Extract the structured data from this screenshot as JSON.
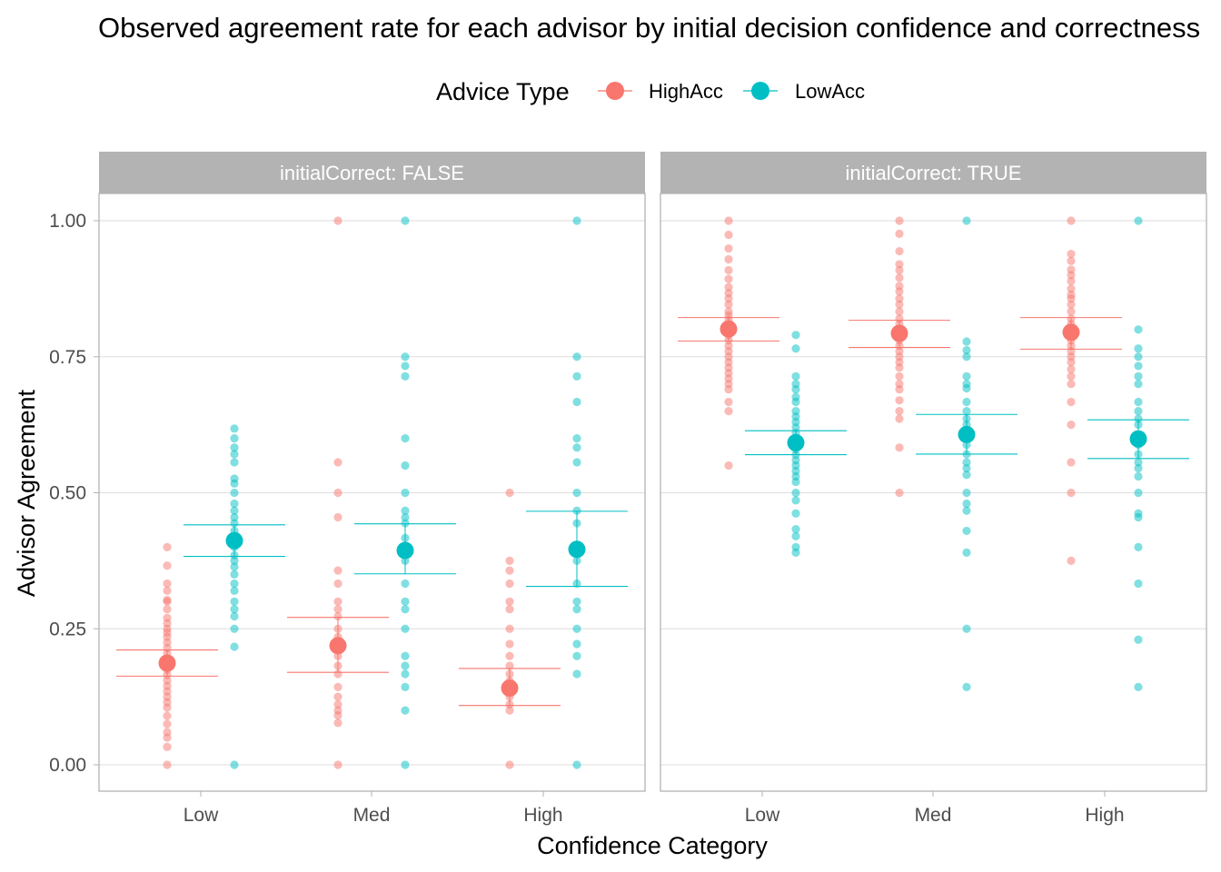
{
  "chart_data": {
    "type": "scatter",
    "title": "Observed agreement rate for each advisor by initial decision confidence and correctness",
    "xlabel": "Confidence Category",
    "ylabel": "Advisor Agreement",
    "ylim": [
      -0.05,
      1.1
    ],
    "yticks": [
      0.0,
      0.25,
      0.5,
      0.75,
      1.0
    ],
    "ytick_labels": [
      "0.00",
      "0.25",
      "0.50",
      "0.75",
      "1.00"
    ],
    "categories": [
      "Low",
      "Med",
      "High"
    ],
    "legend": {
      "title": "Advice Type",
      "position": "top"
    },
    "grid": true,
    "colors": {
      "HighAcc": "#F8766D",
      "LowAcc": "#00BFC4",
      "strip": "#B3B3B3",
      "grid": "#DEDEDE",
      "border": "#B3B3B3"
    },
    "panels": [
      {
        "label": "initialCorrect: FALSE",
        "series": [
          {
            "name": "HighAcc",
            "points": [
              [
                [
                  0.4,
                  0.366,
                  0.333,
                  0.32,
                  0.303,
                  0.3,
                  0.286,
                  0.27,
                  0.26,
                  0.25,
                  0.243,
                  0.235,
                  0.225,
                  0.215,
                  0.205,
                  0.195,
                  0.185,
                  0.175,
                  0.165,
                  0.155,
                  0.145,
                  0.135,
                  0.125,
                  0.115,
                  0.105,
                  0.09,
                  0.075,
                  0.06,
                  0.05,
                  0.033,
                  0.0
                ]
              ],
              [
                [
                  1.0,
                  0.556,
                  0.5,
                  0.455,
                  0.357,
                  0.333,
                  0.3,
                  0.286,
                  0.273,
                  0.25,
                  0.235,
                  0.225,
                  0.214,
                  0.2,
                  0.182,
                  0.167,
                  0.143,
                  0.125,
                  0.111,
                  0.1,
                  0.091,
                  0.077,
                  0.0
                ]
              ],
              [
                [
                  0.5,
                  0.375,
                  0.357,
                  0.333,
                  0.3,
                  0.286,
                  0.25,
                  0.222,
                  0.2,
                  0.182,
                  0.167,
                  0.154,
                  0.143,
                  0.125,
                  0.111,
                  0.1,
                  0.0
                ]
              ]
            ],
            "mean": [
              0.187,
              0.219,
              0.141
            ],
            "ci": [
              [
                0.163,
                0.211
              ],
              [
                0.17,
                0.271
              ],
              [
                0.109,
                0.177
              ]
            ]
          },
          {
            "name": "LowAcc",
            "points": [
              [
                [
                  0.618,
                  0.6,
                  0.583,
                  0.571,
                  0.556,
                  0.526,
                  0.517,
                  0.5,
                  0.48,
                  0.467,
                  0.455,
                  0.444,
                  0.43,
                  0.417,
                  0.4,
                  0.385,
                  0.375,
                  0.364,
                  0.35,
                  0.333,
                  0.32,
                  0.3,
                  0.286,
                  0.273,
                  0.25,
                  0.217,
                  0.0
                ]
              ],
              [
                [
                  1.0,
                  0.75,
                  0.733,
                  0.714,
                  0.6,
                  0.55,
                  0.5,
                  0.467,
                  0.455,
                  0.444,
                  0.417,
                  0.4,
                  0.375,
                  0.333,
                  0.3,
                  0.286,
                  0.25,
                  0.2,
                  0.182,
                  0.167,
                  0.143,
                  0.1,
                  0.0
                ]
              ],
              [
                [
                  1.0,
                  0.75,
                  0.714,
                  0.667,
                  0.6,
                  0.583,
                  0.556,
                  0.5,
                  0.467,
                  0.444,
                  0.4,
                  0.375,
                  0.333,
                  0.3,
                  0.286,
                  0.25,
                  0.222,
                  0.2,
                  0.167,
                  0.0
                ]
              ]
            ],
            "mean": [
              0.412,
              0.394,
              0.396
            ],
            "ci": [
              [
                0.383,
                0.441
              ],
              [
                0.351,
                0.443
              ],
              [
                0.328,
                0.466
              ]
            ]
          }
        ]
      },
      {
        "label": "initialCorrect: TRUE",
        "series": [
          {
            "name": "HighAcc",
            "points": [
              [
                [
                  1.0,
                  0.974,
                  0.949,
                  0.929,
                  0.909,
                  0.893,
                  0.878,
                  0.867,
                  0.857,
                  0.846,
                  0.833,
                  0.826,
                  0.818,
                  0.81,
                  0.8,
                  0.79,
                  0.78,
                  0.77,
                  0.76,
                  0.75,
                  0.74,
                  0.73,
                  0.72,
                  0.71,
                  0.7,
                  0.69,
                  0.667,
                  0.65,
                  0.55
                ]
              ],
              [
                [
                  1.0,
                  0.976,
                  0.944,
                  0.92,
                  0.909,
                  0.895,
                  0.88,
                  0.87,
                  0.857,
                  0.846,
                  0.833,
                  0.82,
                  0.81,
                  0.8,
                  0.79,
                  0.78,
                  0.77,
                  0.76,
                  0.75,
                  0.74,
                  0.73,
                  0.714,
                  0.7,
                  0.69,
                  0.67,
                  0.65,
                  0.636,
                  0.583,
                  0.5
                ]
              ],
              [
                [
                  1.0,
                  0.939,
                  0.926,
                  0.91,
                  0.9,
                  0.889,
                  0.875,
                  0.864,
                  0.857,
                  0.846,
                  0.833,
                  0.82,
                  0.81,
                  0.8,
                  0.79,
                  0.78,
                  0.77,
                  0.76,
                  0.75,
                  0.74,
                  0.727,
                  0.714,
                  0.7,
                  0.667,
                  0.625,
                  0.556,
                  0.5,
                  0.375
                ]
              ]
            ],
            "mean": [
              0.801,
              0.793,
              0.795
            ],
            "ci": [
              [
                0.779,
                0.822
              ],
              [
                0.767,
                0.817
              ],
              [
                0.764,
                0.822
              ]
            ]
          },
          {
            "name": "LowAcc",
            "points": [
              [
                [
                  0.79,
                  0.765,
                  0.714,
                  0.7,
                  0.69,
                  0.676,
                  0.667,
                  0.65,
                  0.64,
                  0.63,
                  0.62,
                  0.61,
                  0.6,
                  0.59,
                  0.58,
                  0.57,
                  0.56,
                  0.55,
                  0.54,
                  0.53,
                  0.52,
                  0.5,
                  0.486,
                  0.462,
                  0.433,
                  0.42,
                  0.4,
                  0.39
                ]
              ],
              [
                [
                  1.0,
                  0.778,
                  0.762,
                  0.75,
                  0.714,
                  0.7,
                  0.692,
                  0.667,
                  0.65,
                  0.636,
                  0.625,
                  0.6,
                  0.588,
                  0.571,
                  0.556,
                  0.545,
                  0.533,
                  0.5,
                  0.48,
                  0.467,
                  0.43,
                  0.39,
                  0.25,
                  0.143
                ]
              ],
              [
                [
                  1.0,
                  0.8,
                  0.765,
                  0.75,
                  0.733,
                  0.714,
                  0.7,
                  0.667,
                  0.65,
                  0.636,
                  0.625,
                  0.6,
                  0.588,
                  0.571,
                  0.556,
                  0.545,
                  0.53,
                  0.5,
                  0.462,
                  0.455,
                  0.4,
                  0.333,
                  0.23,
                  0.143
                ]
              ]
            ],
            "mean": [
              0.592,
              0.607,
              0.599
            ],
            "ci": [
              [
                0.57,
                0.614
              ],
              [
                0.571,
                0.644
              ],
              [
                0.563,
                0.634
              ]
            ]
          }
        ]
      }
    ]
  }
}
